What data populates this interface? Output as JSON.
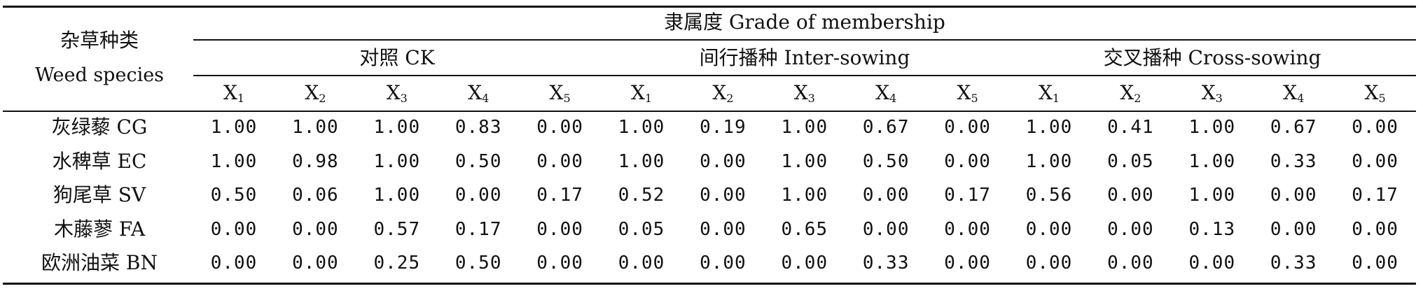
{
  "table": {
    "species_header_zh": "杂草种类",
    "species_header_en": "Weed species",
    "membership_header": "隶属度 Grade of membership",
    "groups": [
      "对照 CK",
      "间行播种 Inter-sowing",
      "交叉播种 Cross-sowing"
    ],
    "x_labels": [
      {
        "base": "X",
        "sub": "1"
      },
      {
        "base": "X",
        "sub": "2"
      },
      {
        "base": "X",
        "sub": "3"
      },
      {
        "base": "X",
        "sub": "4"
      },
      {
        "base": "X",
        "sub": "5"
      }
    ],
    "rows": [
      {
        "label": "灰绿藜 CG",
        "values": [
          "1.00",
          "1.00",
          "1.00",
          "0.83",
          "0.00",
          "1.00",
          "0.19",
          "1.00",
          "0.67",
          "0.00",
          "1.00",
          "0.41",
          "1.00",
          "0.67",
          "0.00"
        ]
      },
      {
        "label": "水稗草 EC",
        "values": [
          "1.00",
          "0.98",
          "1.00",
          "0.50",
          "0.00",
          "1.00",
          "0.00",
          "1.00",
          "0.50",
          "0.00",
          "1.00",
          "0.05",
          "1.00",
          "0.33",
          "0.00"
        ]
      },
      {
        "label": "狗尾草 SV",
        "values": [
          "0.50",
          "0.06",
          "1.00",
          "0.00",
          "0.17",
          "0.52",
          "0.00",
          "1.00",
          "0.00",
          "0.17",
          "0.56",
          "0.00",
          "1.00",
          "0.00",
          "0.17"
        ]
      },
      {
        "label": "木藤蓼 FA",
        "values": [
          "0.00",
          "0.00",
          "0.57",
          "0.17",
          "0.00",
          "0.05",
          "0.00",
          "0.65",
          "0.00",
          "0.00",
          "0.00",
          "0.00",
          "0.13",
          "0.00",
          "0.00"
        ]
      },
      {
        "label": "欧洲油菜 BN",
        "values": [
          "0.00",
          "0.00",
          "0.25",
          "0.50",
          "0.00",
          "0.00",
          "0.00",
          "0.00",
          "0.33",
          "0.00",
          "0.00",
          "0.00",
          "0.00",
          "0.33",
          "0.00"
        ]
      }
    ]
  }
}
